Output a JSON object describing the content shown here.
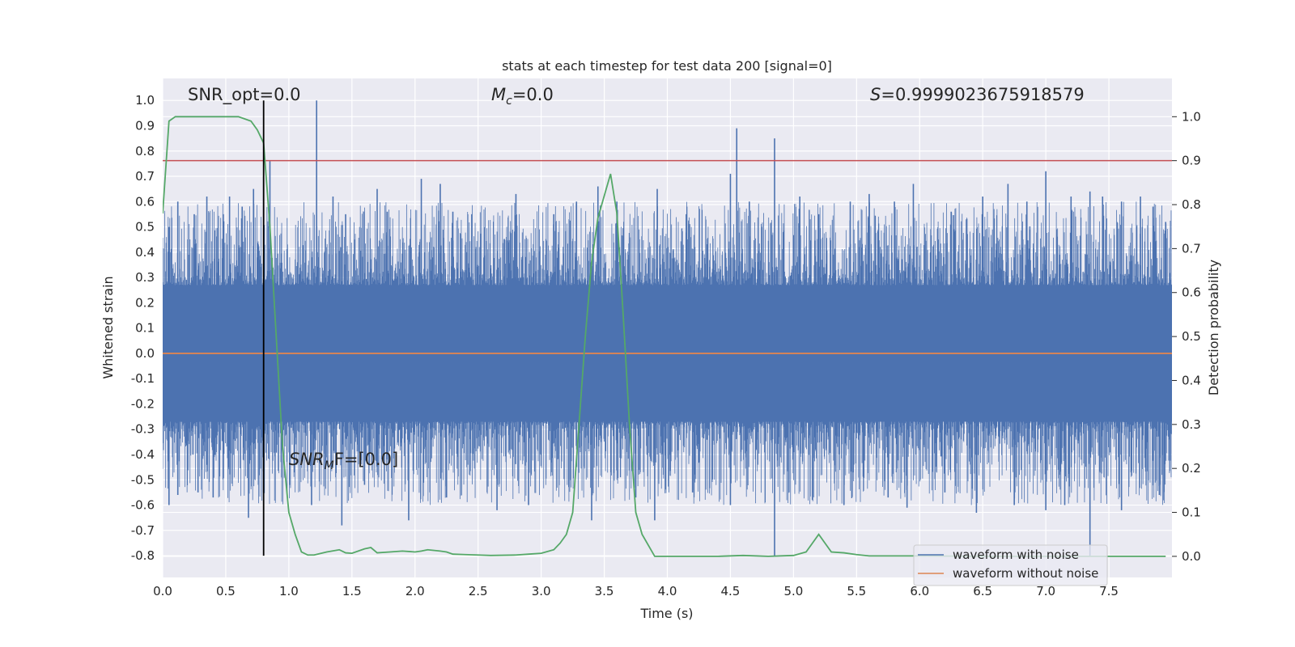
{
  "chart_data": {
    "type": "line",
    "title": "stats at each timestep for test data 200 [signal=0]",
    "xlabel": "Time (s)",
    "ylabel_left": "Whitened strain",
    "ylabel_right": "Detection probability",
    "xlim": [
      0.0,
      8.0
    ],
    "ylim_left": [
      -0.886,
      1.087
    ],
    "ylim_right": [
      -0.048,
      1.087
    ],
    "x_ticks": [
      "0.0",
      "0.5",
      "1.0",
      "1.5",
      "2.0",
      "2.5",
      "3.0",
      "3.5",
      "4.0",
      "4.5",
      "5.0",
      "5.5",
      "6.0",
      "6.5",
      "7.0",
      "7.5"
    ],
    "y_ticks_left": [
      "1.0",
      "0.9",
      "0.8",
      "0.7",
      "0.6",
      "0.5",
      "0.4",
      "0.3",
      "0.2",
      "0.1",
      "0.0",
      "-0.1",
      "-0.2",
      "-0.3",
      "-0.4",
      "-0.5",
      "-0.6",
      "-0.7",
      "-0.8"
    ],
    "y_ticks_right": [
      "1.0",
      "0.9",
      "0.8",
      "0.7",
      "0.6",
      "0.5",
      "0.4",
      "0.3",
      "0.2",
      "0.1",
      "0.0"
    ],
    "grid": true,
    "legend": "bottom-right",
    "annotations": {
      "snr_opt": "SNR_opt=0.0",
      "mc_symbol": "M",
      "mc_sub": "c",
      "mc_value": "=0.0",
      "s_symbol": "S",
      "s_value": "=0.9999023675918579",
      "snr_mf_base": "SNR",
      "snr_mf_sub": "M",
      "snr_mf_tail": "F=[0.0]"
    },
    "colors": {
      "background": "#eaeaf2",
      "noise": "#4c72b0",
      "clean": "#dd8452",
      "probability": "#55a868",
      "threshold": "#c44e52",
      "marker": "#000000"
    },
    "series": [
      {
        "name": "waveform with noise",
        "axis": "left",
        "color": "#4c72b0",
        "band_typical": [
          -0.27,
          0.27
        ],
        "max": 1.0,
        "min": -0.8,
        "peaks_x": [
          0.05,
          0.12,
          0.25,
          0.35,
          0.48,
          0.53,
          0.63,
          0.72,
          0.8,
          0.85,
          1.22,
          1.35,
          1.45,
          1.7,
          1.78,
          2.05,
          2.2,
          2.3,
          2.45,
          2.8,
          3.1,
          3.28,
          3.45,
          3.6,
          3.92,
          4.15,
          4.5,
          4.55,
          4.65,
          4.85,
          5.05,
          5.2,
          5.45,
          5.6,
          5.8,
          5.95,
          6.25,
          6.5,
          6.7,
          6.85,
          7.0,
          7.2,
          7.35,
          7.45,
          7.6,
          7.75,
          7.85,
          7.95
        ],
        "peaks_y": [
          0.5,
          0.6,
          0.55,
          0.62,
          0.55,
          0.62,
          0.58,
          0.65,
          0.7,
          0.76,
          1.0,
          0.62,
          0.55,
          0.65,
          0.56,
          0.69,
          0.67,
          0.56,
          0.55,
          0.63,
          0.55,
          0.6,
          0.66,
          0.6,
          0.65,
          0.55,
          0.71,
          0.89,
          0.6,
          0.85,
          0.62,
          0.55,
          0.6,
          0.63,
          0.6,
          0.67,
          0.56,
          0.62,
          0.67,
          0.6,
          0.72,
          0.62,
          0.64,
          0.62,
          0.6,
          0.62,
          0.58,
          0.52
        ],
        "troughs_x": [
          0.05,
          0.12,
          0.28,
          0.4,
          0.68,
          0.8,
          1.18,
          1.42,
          1.6,
          1.95,
          2.25,
          2.65,
          2.9,
          3.4,
          3.75,
          3.9,
          4.2,
          4.5,
          4.85,
          5.15,
          5.4,
          5.75,
          5.9,
          6.2,
          6.45,
          6.75,
          7.0,
          7.15,
          7.35,
          7.6,
          7.9
        ],
        "troughs_y": [
          -0.6,
          -0.56,
          -0.55,
          -0.57,
          -0.65,
          -0.55,
          -0.6,
          -0.68,
          -0.52,
          -0.66,
          -0.57,
          -0.62,
          -0.6,
          -0.66,
          -0.57,
          -0.66,
          -0.55,
          -0.6,
          -0.8,
          -0.58,
          -0.6,
          -0.57,
          -0.61,
          -0.55,
          -0.63,
          -0.6,
          -0.62,
          -0.6,
          -0.8,
          -0.62,
          -0.56
        ]
      },
      {
        "name": "waveform without noise",
        "axis": "left",
        "color": "#dd8452",
        "x": [
          0.0,
          8.0
        ],
        "y": [
          0.0,
          0.0
        ]
      },
      {
        "axis": "right",
        "color": "#55a868",
        "x": [
          0.0,
          0.05,
          0.1,
          0.2,
          0.3,
          0.4,
          0.5,
          0.6,
          0.65,
          0.7,
          0.75,
          0.8,
          0.85,
          0.9,
          0.95,
          1.0,
          1.05,
          1.1,
          1.15,
          1.2,
          1.3,
          1.4,
          1.45,
          1.5,
          1.6,
          1.65,
          1.7,
          1.8,
          1.9,
          2.0,
          2.05,
          2.1,
          2.2,
          2.25,
          2.3,
          2.4,
          2.5,
          2.6,
          2.8,
          2.9,
          3.0,
          3.1,
          3.15,
          3.2,
          3.25,
          3.3,
          3.35,
          3.4,
          3.45,
          3.5,
          3.55,
          3.6,
          3.65,
          3.7,
          3.75,
          3.8,
          3.9,
          4.0,
          4.2,
          4.4,
          4.6,
          4.8,
          5.0,
          5.1,
          5.15,
          5.2,
          5.25,
          5.3,
          5.4,
          5.5,
          5.6,
          5.8,
          6.0,
          6.5,
          7.0,
          7.5,
          7.8,
          7.95
        ],
        "y": [
          0.78,
          0.99,
          1.0,
          1.0,
          1.0,
          1.0,
          1.0,
          1.0,
          0.995,
          0.99,
          0.97,
          0.94,
          0.75,
          0.5,
          0.25,
          0.1,
          0.05,
          0.01,
          0.003,
          0.003,
          0.01,
          0.015,
          0.008,
          0.007,
          0.017,
          0.02,
          0.008,
          0.01,
          0.012,
          0.01,
          0.012,
          0.015,
          0.012,
          0.01,
          0.005,
          0.004,
          0.003,
          0.002,
          0.003,
          0.005,
          0.007,
          0.015,
          0.03,
          0.05,
          0.1,
          0.3,
          0.5,
          0.67,
          0.77,
          0.82,
          0.87,
          0.78,
          0.55,
          0.3,
          0.1,
          0.05,
          0.0,
          0.0,
          0.0,
          0.0,
          0.002,
          0.0,
          0.002,
          0.01,
          0.03,
          0.05,
          0.03,
          0.01,
          0.008,
          0.004,
          0.001,
          0.001,
          0.001,
          0.0,
          0.0,
          0.0,
          0.0,
          0.0
        ]
      },
      {
        "axis": "right",
        "color": "#c44e52",
        "x": [
          0.0,
          8.0
        ],
        "y": [
          0.9,
          0.9
        ]
      },
      {
        "axis": "left",
        "color": "#000000",
        "x": [
          0.8,
          0.8
        ],
        "y": [
          -0.8,
          1.0
        ]
      }
    ]
  }
}
